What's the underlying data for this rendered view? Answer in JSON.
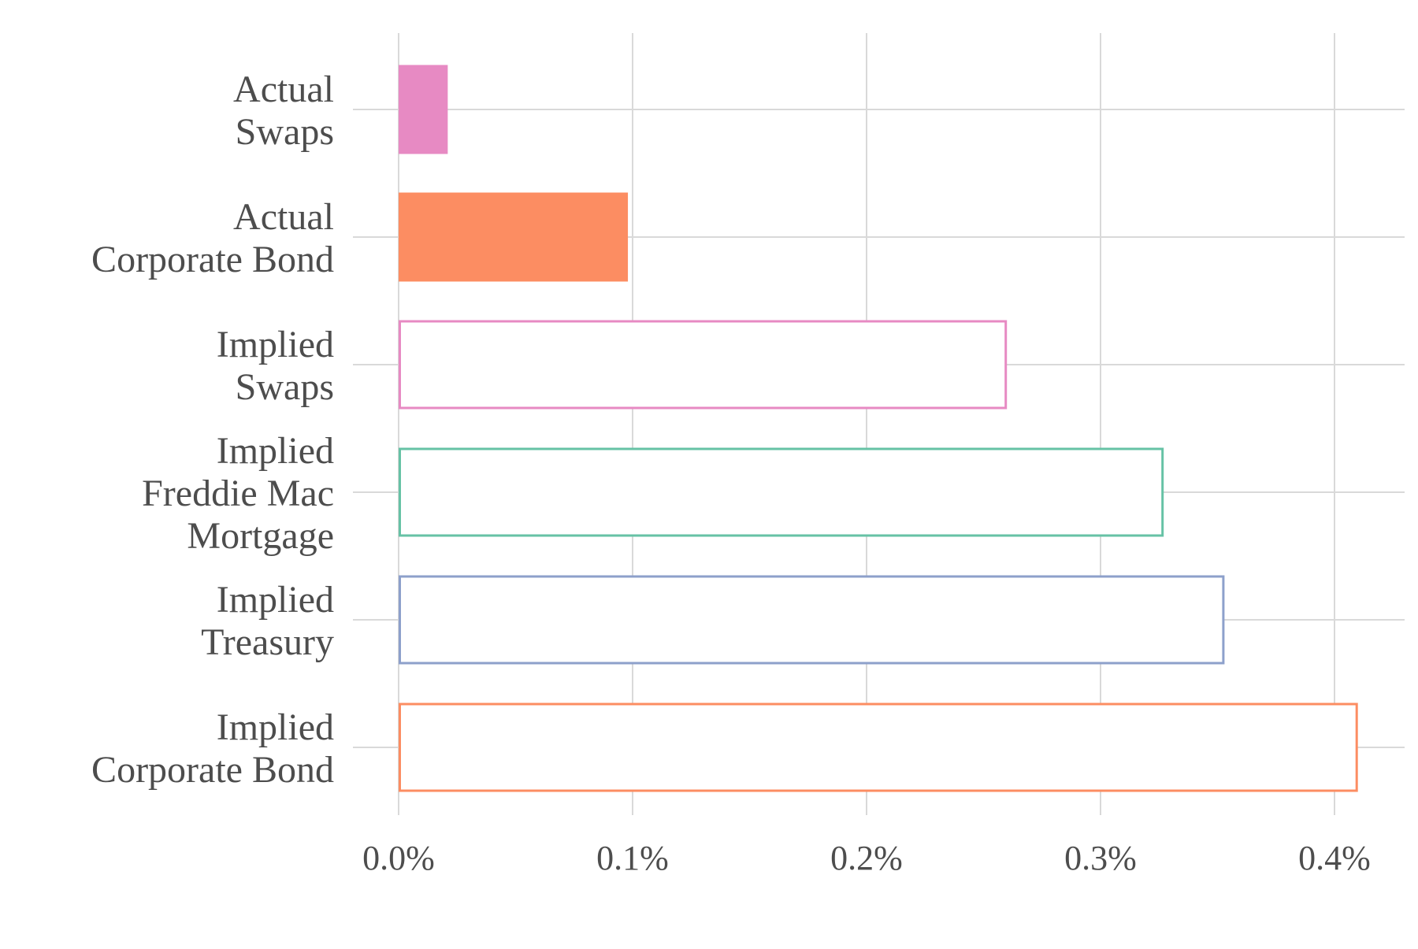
{
  "chart_data": {
    "type": "bar",
    "orientation": "horizontal",
    "title": "",
    "xlabel": "",
    "ylabel": "",
    "xlim": [
      0,
      0.43
    ],
    "grid": true,
    "legend": "none",
    "x_ticks": [
      {
        "value": 0.0,
        "label": "0.0%"
      },
      {
        "value": 0.1,
        "label": "0.1%"
      },
      {
        "value": 0.2,
        "label": "0.2%"
      },
      {
        "value": 0.3,
        "label": "0.3%"
      },
      {
        "value": 0.4,
        "label": "0.4%"
      }
    ],
    "bars": [
      {
        "label_lines": [
          "Actual",
          "Swaps"
        ],
        "value": 0.021,
        "style": "filled",
        "color": "#e78ac3"
      },
      {
        "label_lines": [
          "Actual",
          "Corporate Bond"
        ],
        "value": 0.098,
        "style": "filled",
        "color": "#fc8d62"
      },
      {
        "label_lines": [
          "Implied",
          "Swaps"
        ],
        "value": 0.26,
        "style": "outline",
        "color": "#e78ac3"
      },
      {
        "label_lines": [
          "Implied",
          "Freddie Mac",
          "Mortgage"
        ],
        "value": 0.327,
        "style": "outline",
        "color": "#66c2a5"
      },
      {
        "label_lines": [
          "Implied",
          "Treasury"
        ],
        "value": 0.353,
        "style": "outline",
        "color": "#8da0cb"
      },
      {
        "label_lines": [
          "Implied",
          "Corporate Bond"
        ],
        "value": 0.41,
        "style": "outline",
        "color": "#fc8d62"
      }
    ],
    "colors": {
      "grid": "#d9d9d9",
      "text": "#4d4d4d",
      "background": "#ffffff"
    }
  }
}
